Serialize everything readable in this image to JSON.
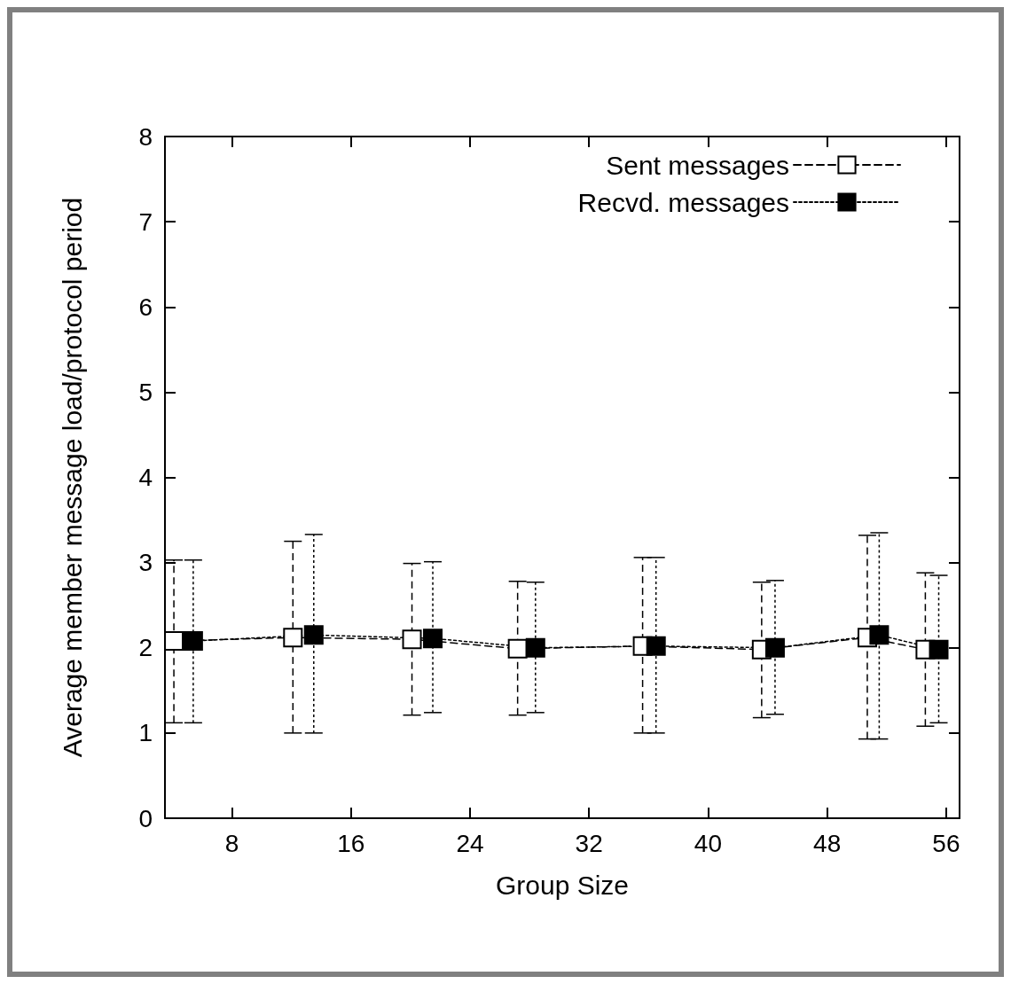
{
  "chart_data": {
    "type": "line",
    "xlabel": "Group Size",
    "ylabel": "Average member message load/protocol period",
    "xlim": [
      3.5,
      56.9
    ],
    "xticks": [
      8,
      16,
      24,
      32,
      40,
      48,
      56
    ],
    "ylim": [
      0,
      8
    ],
    "yticks": [
      0,
      1,
      2,
      3,
      4,
      5,
      6,
      7,
      8
    ],
    "grid": false,
    "legend": "top right",
    "marker": "square",
    "series": [
      {
        "name": "Sent messages",
        "color": "#000000",
        "line_style": "dashed",
        "x": [
          4.1,
          12.1,
          20.1,
          27.2,
          35.6,
          43.6,
          50.7,
          54.6
        ],
        "values": [
          2.08,
          2.12,
          2.1,
          1.99,
          2.02,
          1.98,
          2.12,
          1.98
        ],
        "errors": [
          [
            1.12,
            3.03
          ],
          [
            1.0,
            3.25
          ],
          [
            1.21,
            2.99
          ],
          [
            1.21,
            2.78
          ],
          [
            1.0,
            3.06
          ],
          [
            1.18,
            2.77
          ],
          [
            0.93,
            3.32
          ],
          [
            1.08,
            2.88
          ]
        ]
      },
      {
        "name": "Recvd. messages",
        "color": "#000000",
        "line_style": "dotted",
        "x": [
          5.4,
          13.5,
          21.5,
          28.4,
          36.5,
          44.5,
          51.5,
          55.5
        ],
        "values": [
          2.08,
          2.15,
          2.11,
          2.0,
          2.02,
          2.0,
          2.15,
          1.98
        ],
        "errors": [
          [
            1.12,
            3.03
          ],
          [
            1.0,
            3.33
          ],
          [
            1.24,
            3.01
          ],
          [
            1.24,
            2.77
          ],
          [
            1.0,
            3.06
          ],
          [
            1.22,
            2.79
          ],
          [
            0.93,
            3.35
          ],
          [
            1.12,
            2.85
          ]
        ]
      }
    ]
  }
}
